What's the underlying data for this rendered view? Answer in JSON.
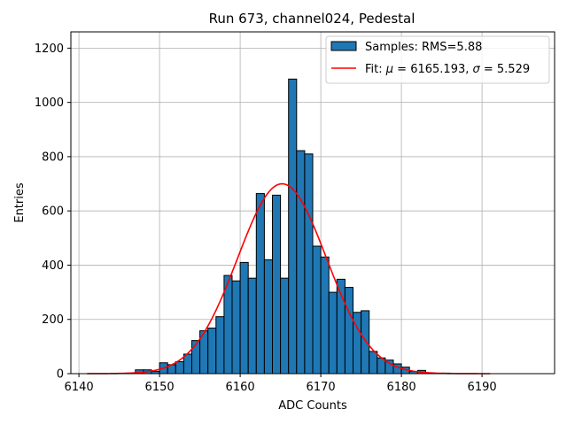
{
  "chart_data": {
    "type": "bar",
    "title": "Run 673, channel024, Pedestal",
    "xlabel": "ADC Counts",
    "ylabel": "Entries",
    "xlim": [
      6139,
      6199
    ],
    "ylim": [
      0,
      1260
    ],
    "x_ticks": [
      6140,
      6150,
      6160,
      6170,
      6180,
      6190
    ],
    "y_ticks": [
      0,
      200,
      400,
      600,
      800,
      1000,
      1200
    ],
    "grid": true,
    "legend_position": "top-right",
    "histogram": {
      "name": "Samples: RMS=5.88",
      "color": "#1f77b4",
      "edge_color": "#000000",
      "bins": [
        {
          "x0": 6147,
          "x1": 6148,
          "value": 14
        },
        {
          "x0": 6148,
          "x1": 6149,
          "value": 14
        },
        {
          "x0": 6149,
          "x1": 6150,
          "value": 8
        },
        {
          "x0": 6150,
          "x1": 6151,
          "value": 40
        },
        {
          "x0": 6151,
          "x1": 6152,
          "value": 33
        },
        {
          "x0": 6152,
          "x1": 6153,
          "value": 44
        },
        {
          "x0": 6153,
          "x1": 6154,
          "value": 72
        },
        {
          "x0": 6154,
          "x1": 6155,
          "value": 122
        },
        {
          "x0": 6155,
          "x1": 6156,
          "value": 158
        },
        {
          "x0": 6156,
          "x1": 6157,
          "value": 168
        },
        {
          "x0": 6157,
          "x1": 6158,
          "value": 210
        },
        {
          "x0": 6158,
          "x1": 6159,
          "value": 362
        },
        {
          "x0": 6159,
          "x1": 6160,
          "value": 342
        },
        {
          "x0": 6160,
          "x1": 6161,
          "value": 410
        },
        {
          "x0": 6161,
          "x1": 6162,
          "value": 352
        },
        {
          "x0": 6162,
          "x1": 6163,
          "value": 664
        },
        {
          "x0": 6163,
          "x1": 6164,
          "value": 420
        },
        {
          "x0": 6164,
          "x1": 6165,
          "value": 658
        },
        {
          "x0": 6165,
          "x1": 6166,
          "value": 352
        },
        {
          "x0": 6166,
          "x1": 6167,
          "value": 1086
        },
        {
          "x0": 6167,
          "x1": 6168,
          "value": 822
        },
        {
          "x0": 6168,
          "x1": 6169,
          "value": 810
        },
        {
          "x0": 6169,
          "x1": 6170,
          "value": 470
        },
        {
          "x0": 6170,
          "x1": 6171,
          "value": 430
        },
        {
          "x0": 6171,
          "x1": 6172,
          "value": 300
        },
        {
          "x0": 6172,
          "x1": 6173,
          "value": 348
        },
        {
          "x0": 6173,
          "x1": 6174,
          "value": 318
        },
        {
          "x0": 6174,
          "x1": 6175,
          "value": 226
        },
        {
          "x0": 6175,
          "x1": 6176,
          "value": 232
        },
        {
          "x0": 6176,
          "x1": 6177,
          "value": 82
        },
        {
          "x0": 6177,
          "x1": 6178,
          "value": 58
        },
        {
          "x0": 6178,
          "x1": 6179,
          "value": 50
        },
        {
          "x0": 6179,
          "x1": 6180,
          "value": 36
        },
        {
          "x0": 6180,
          "x1": 6181,
          "value": 24
        },
        {
          "x0": 6181,
          "x1": 6182,
          "value": 8
        },
        {
          "x0": 6182,
          "x1": 6183,
          "value": 12
        },
        {
          "x0": 6183,
          "x1": 6184,
          "value": 3
        },
        {
          "x0": 6185,
          "x1": 6186,
          "value": 2
        }
      ]
    },
    "fit": {
      "name_prefix": "Fit: ",
      "name_mu_symbol": "μ",
      "name_mid": " = 6165.193, ",
      "name_sigma_symbol": "σ",
      "name_suffix": " = 5.529",
      "color": "#ff0000",
      "type": "gaussian",
      "mu": 6165.193,
      "sigma": 5.529,
      "amplitude": 700,
      "x_range": [
        6141,
        6191
      ]
    }
  }
}
